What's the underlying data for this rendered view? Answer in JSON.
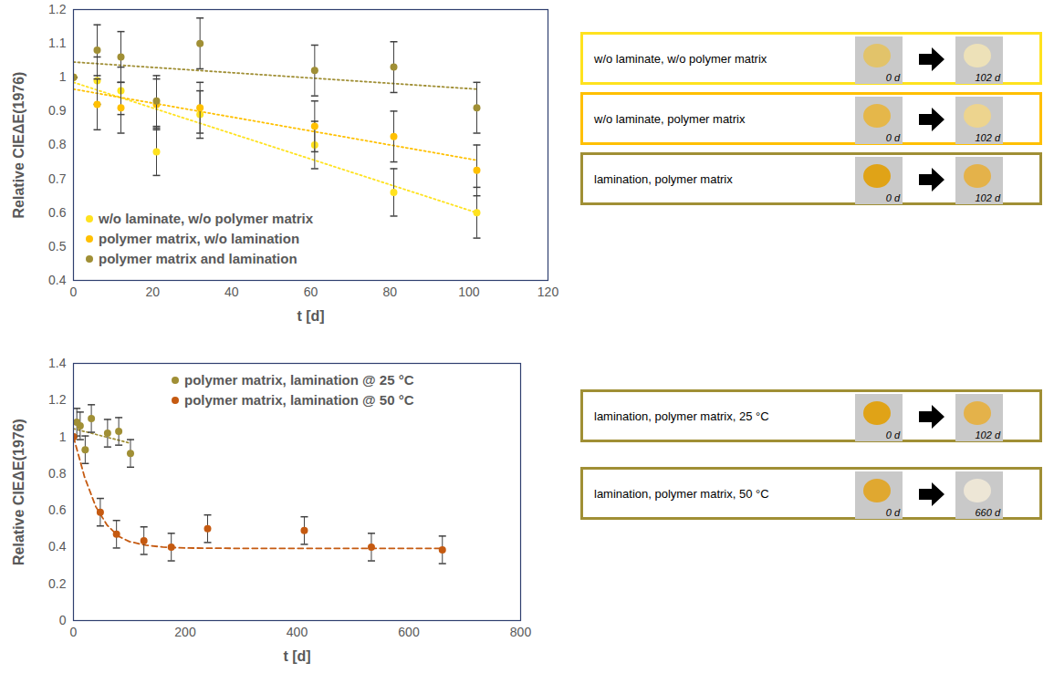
{
  "chart_data": [
    {
      "type": "scatter",
      "x_label": "t [d]",
      "y_label": "Relative CIEΔE(1976)",
      "xlim": [
        0,
        120
      ],
      "xticks": [
        0,
        20,
        40,
        60,
        80,
        100,
        120
      ],
      "ylim": [
        0.4,
        1.2
      ],
      "yticks": [
        0.4,
        0.5,
        0.6,
        0.7,
        0.8,
        0.9,
        1,
        1.1,
        1.2
      ],
      "grid": false,
      "legend": "lower left",
      "series": [
        {
          "name": "w/o laminate, w/o polymer matrix",
          "color": "#FFE21F",
          "marker": "circle",
          "line_style": "dotted",
          "x": [
            0,
            6,
            12,
            21,
            32,
            61,
            81,
            102
          ],
          "values": [
            1.0,
            0.99,
            0.96,
            0.78,
            0.89,
            0.8,
            0.66,
            0.6
          ],
          "errors": [
            0,
            0.07,
            0.07,
            0.07,
            0.07,
            0.07,
            0.07,
            0.075
          ],
          "fit": {
            "x": [
              0,
              102
            ],
            "values": [
              0.985,
              0.6
            ]
          }
        },
        {
          "name": "polymer matrix, w/o lamination",
          "color": "#FFC000",
          "marker": "circle",
          "line_style": "dotted",
          "x": [
            0,
            6,
            12,
            21,
            32,
            61,
            81,
            102
          ],
          "values": [
            1.0,
            0.92,
            0.91,
            0.92,
            0.91,
            0.855,
            0.825,
            0.725
          ],
          "errors": [
            0,
            0.075,
            0.075,
            0.075,
            0.075,
            0.075,
            0.075,
            0.075
          ],
          "fit": {
            "x": [
              0,
              102
            ],
            "values": [
              0.965,
              0.755
            ]
          }
        },
        {
          "name": "polymer matrix and lamination",
          "color": "#A08F35",
          "marker": "circle",
          "line_style": "dotted",
          "x": [
            0,
            6,
            12,
            21,
            32,
            61,
            81,
            102
          ],
          "values": [
            1.0,
            1.08,
            1.06,
            0.93,
            1.1,
            1.02,
            1.03,
            0.91
          ],
          "errors": [
            0,
            0.075,
            0.075,
            0.075,
            0.075,
            0.075,
            0.075,
            0.075
          ],
          "fit": {
            "x": [
              0,
              102
            ],
            "values": [
              1.045,
              0.965
            ]
          }
        }
      ]
    },
    {
      "type": "scatter",
      "x_label": "t [d]",
      "y_label": "Relative CIEΔE(1976)",
      "xlim": [
        0,
        800
      ],
      "xticks": [
        0,
        200,
        400,
        600,
        800
      ],
      "ylim": [
        0,
        1.4
      ],
      "yticks": [
        0,
        0.2,
        0.4,
        0.6,
        0.8,
        1,
        1.2,
        1.4
      ],
      "grid": false,
      "legend": "upper left",
      "series": [
        {
          "name": "polymer matrix, lamination @ 25 °C",
          "color": "#A08F35",
          "marker": "circle",
          "line_style": "dotted",
          "x": [
            0,
            6,
            12,
            21,
            32,
            61,
            81,
            102
          ],
          "values": [
            1.0,
            1.08,
            1.06,
            0.93,
            1.1,
            1.02,
            1.03,
            0.91
          ],
          "errors": [
            0,
            0.075,
            0.075,
            0.075,
            0.075,
            0.075,
            0.075,
            0.075
          ],
          "fit": {
            "x": [
              0,
              102
            ],
            "values": [
              1.045,
              0.965
            ]
          }
        },
        {
          "name": "polymer matrix, lamination @ 50 °C",
          "color": "#C55A11",
          "marker": "circle",
          "line_style": "dashed",
          "x": [
            0,
            48,
            77,
            126,
            175,
            240,
            413,
            533,
            660
          ],
          "values": [
            1.0,
            0.59,
            0.47,
            0.435,
            0.4,
            0.5,
            0.49,
            0.4,
            0.385
          ],
          "errors": [
            0,
            0.075,
            0.075,
            0.075,
            0.075,
            0.075,
            0.075,
            0.075,
            0.075
          ],
          "fit": {
            "x": [
              0,
              20,
              40,
              60,
              80,
              100,
              130,
              160,
              200,
              300,
              660
            ],
            "values": [
              1.0,
              0.78,
              0.62,
              0.52,
              0.46,
              0.43,
              0.41,
              0.4,
              0.395,
              0.393,
              0.393
            ]
          }
        }
      ]
    }
  ],
  "panels": [
    {
      "label": "w/o laminate, w/o polymer matrix",
      "color": "#FFE21F",
      "colors": [
        "#E2C36A",
        "#EDE1B8"
      ],
      "days": [
        "0 d",
        "102 d"
      ]
    },
    {
      "label": "w/o laminate, polymer matrix",
      "color": "#FFC000",
      "colors": [
        "#E5B74A",
        "#EDD48E"
      ],
      "days": [
        "0 d",
        "102 d"
      ]
    },
    {
      "label": "lamination, polymer matrix",
      "color": "#A08F35",
      "colors": [
        "#E0A317",
        "#E4B24A"
      ],
      "days": [
        "0 d",
        "102 d"
      ]
    },
    {
      "label": "lamination, polymer matrix, 25 °C",
      "color": "#A08F35",
      "colors": [
        "#E0A317",
        "#E4B24A"
      ],
      "days": [
        "0 d",
        "102 d"
      ]
    },
    {
      "label": "lamination, polymer matrix, 50 °C",
      "color": "#A08F35",
      "colors": [
        "#E0A830",
        "#EDE6D6"
      ],
      "days": [
        "0 d",
        "660 d"
      ]
    }
  ]
}
